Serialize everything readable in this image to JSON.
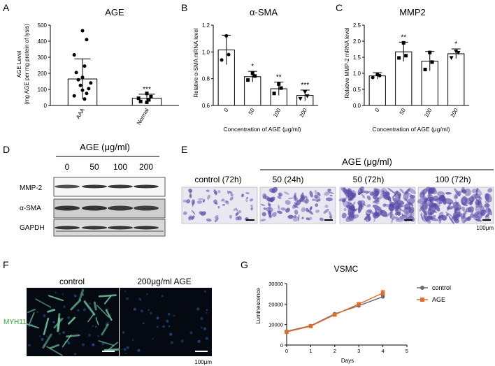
{
  "panel_labels": [
    "A",
    "B",
    "C",
    "D",
    "E",
    "F",
    "G"
  ],
  "chart_data": [
    {
      "panel": "A",
      "type": "bar",
      "title": "AGE",
      "ylabel_line1": "AGE Level",
      "ylabel_line2": "(mg AGE per mg protein of lysis)",
      "ylim": [
        0,
        500
      ],
      "yticks": [
        "0",
        "100",
        "200",
        "300",
        "400",
        "500"
      ],
      "categories": [
        "AAA",
        "Normal"
      ],
      "values": [
        165,
        45
      ],
      "errors": [
        125,
        25
      ],
      "significance": [
        "",
        "***"
      ],
      "points": [
        [
          465,
          410,
          315,
          245,
          205,
          175,
          160,
          140,
          125,
          105,
          95,
          75,
          60,
          40
        ],
        [
          75,
          55,
          45,
          35,
          25,
          20
        ]
      ]
    },
    {
      "panel": "B",
      "type": "bar",
      "title": "α-SMA",
      "ylabel": "Relative α-SMA mRNA level",
      "xlabel": "Concentration of AGE (μg/ml)",
      "ylim": [
        0.6,
        1.2
      ],
      "yticks": [
        "0.6",
        "0.8",
        "1.0",
        "1.2"
      ],
      "categories": [
        "0",
        "50",
        "100",
        "200"
      ],
      "values": [
        1.015,
        0.815,
        0.725,
        0.675
      ],
      "errors": [
        0.11,
        0.04,
        0.05,
        0.04
      ],
      "significance": [
        "",
        "*",
        "**",
        "***"
      ],
      "points": [
        [
          1.12,
          0.98,
          0.94
        ],
        [
          0.84,
          0.82,
          0.79
        ],
        [
          0.76,
          0.73,
          0.69
        ],
        [
          0.7,
          0.67,
          0.65
        ]
      ]
    },
    {
      "panel": "C",
      "type": "bar",
      "title": "MMP2",
      "ylabel": "Relative MMP-2 mRNA level",
      "xlabel": "Concentration of AGE (μg/ml)",
      "ylim": [
        0,
        2.5
      ],
      "yticks": [
        "0.0",
        "0.5",
        "1.0",
        "1.5",
        "2.0",
        "2.5"
      ],
      "categories": [
        "0",
        "50",
        "100",
        "200"
      ],
      "values": [
        0.92,
        1.67,
        1.38,
        1.61
      ],
      "errors": [
        0.1,
        0.3,
        0.3,
        0.15
      ],
      "significance": [
        "",
        "**",
        "",
        "*"
      ],
      "points": [
        [
          0.97,
          0.93,
          0.87
        ],
        [
          1.95,
          1.55,
          1.48
        ],
        [
          1.65,
          1.35,
          1.12
        ],
        [
          1.68,
          1.64,
          1.48
        ]
      ]
    },
    {
      "panel": "G",
      "type": "line",
      "title": "VSMC",
      "ylabel": "Luminescence",
      "xlabel": "Days",
      "xlim": [
        0,
        5
      ],
      "ylim": [
        0,
        30000
      ],
      "xticks": [
        "0",
        "1",
        "2",
        "3",
        "4",
        "5"
      ],
      "yticks": [
        "0",
        "10000",
        "20000",
        "30000"
      ],
      "x": [
        0,
        1,
        2,
        3,
        4
      ],
      "series": [
        {
          "name": "control",
          "color": "#6d6d6d",
          "values": [
            6700,
            9400,
            15200,
            19200,
            23600
          ],
          "errors": [
            300,
            300,
            400,
            600,
            800
          ]
        },
        {
          "name": "AGE",
          "color": "#e06c2c",
          "values": [
            6400,
            9200,
            14800,
            20000,
            25400
          ],
          "errors": [
            300,
            300,
            400,
            600,
            1400
          ]
        }
      ]
    }
  ],
  "western_blot": {
    "header": "AGE (μg/ml)",
    "lanes": [
      "0",
      "50",
      "100",
      "200"
    ],
    "rows": [
      "MMP-2",
      "α-SMA",
      "GAPDH"
    ]
  },
  "transwell": {
    "header": "AGE (μg/ml)",
    "labels": [
      "control (72h)",
      "50 (24h)",
      "50 (72h)",
      "100 (72h)"
    ],
    "densities": [
      1,
      2,
      4,
      4
    ],
    "scale": "100μm"
  },
  "fluorescence": {
    "labels": [
      "control",
      "200μg/ml AGE"
    ],
    "marker": "MYH11",
    "marker_color": "#2ea636",
    "scale": "100μm"
  }
}
